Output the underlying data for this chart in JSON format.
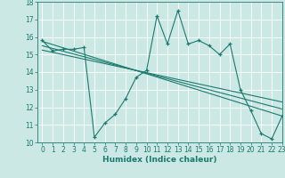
{
  "main_x": [
    0,
    1,
    2,
    3,
    4,
    5,
    6,
    7,
    8,
    9,
    10,
    11,
    12,
    13,
    14,
    15,
    16,
    17,
    18,
    19,
    20,
    21,
    22,
    23
  ],
  "main_y": [
    15.8,
    15.2,
    15.3,
    15.3,
    15.4,
    10.3,
    11.1,
    11.6,
    12.5,
    13.7,
    14.1,
    17.2,
    15.6,
    17.5,
    15.6,
    15.8,
    15.5,
    15.0,
    15.6,
    13.0,
    11.8,
    10.5,
    10.2,
    11.5
  ],
  "line1_x": [
    0,
    23
  ],
  "line1_y": [
    15.75,
    11.5
  ],
  "line2_x": [
    0,
    23
  ],
  "line2_y": [
    15.5,
    11.9
  ],
  "line3_x": [
    0,
    23
  ],
  "line3_y": [
    15.25,
    12.3
  ],
  "color_main": "#1a7a6e",
  "color_lines": "#1a7a6e",
  "bg_color": "#cce8e5",
  "grid_color": "#b0d8d4",
  "xlabel": "Humidex (Indice chaleur)",
  "ylim": [
    10,
    18
  ],
  "xlim": [
    -0.5,
    23
  ],
  "yticks": [
    10,
    11,
    12,
    13,
    14,
    15,
    16,
    17,
    18
  ],
  "xticks": [
    0,
    1,
    2,
    3,
    4,
    5,
    6,
    7,
    8,
    9,
    10,
    11,
    12,
    13,
    14,
    15,
    16,
    17,
    18,
    19,
    20,
    21,
    22,
    23
  ]
}
